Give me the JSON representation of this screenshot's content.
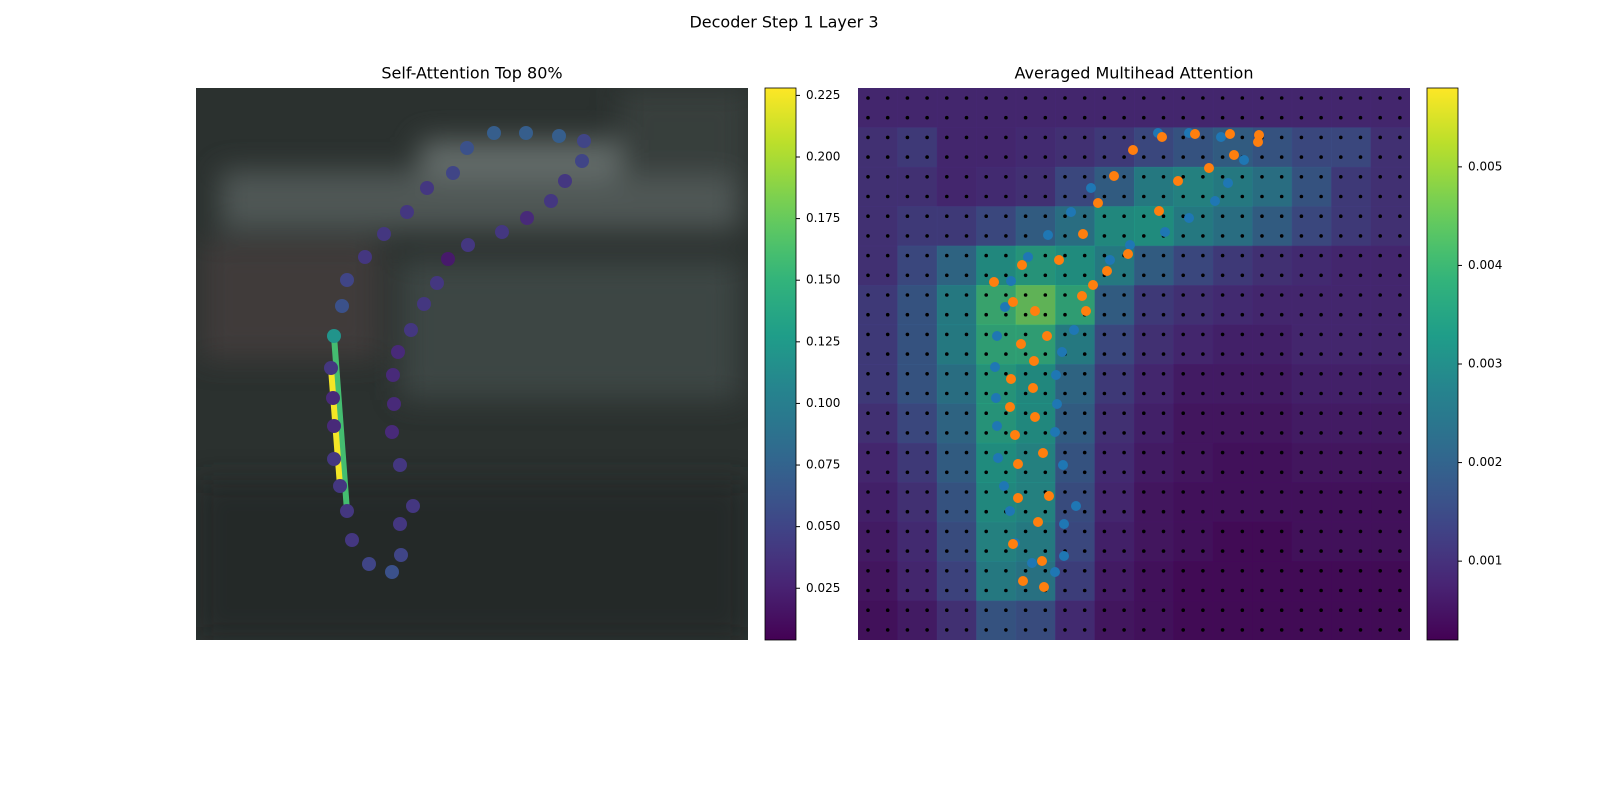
{
  "title": "Decoder Step 1 Layer 3",
  "chart_data": [
    {
      "type": "scatter",
      "title": "Self-Attention Top 80%",
      "xlim": [
        0,
        552
      ],
      "ylim": [
        552,
        0
      ],
      "x": [
        138,
        135,
        137,
        138,
        138,
        144,
        151,
        156,
        173,
        196,
        205,
        204,
        217,
        204,
        196,
        198,
        197,
        202,
        215,
        228,
        241,
        252,
        272,
        306,
        331,
        355,
        369,
        386,
        388,
        363,
        330,
        298,
        271,
        257,
        231,
        211,
        188,
        169,
        151,
        146
      ],
      "y": [
        248,
        280,
        310,
        338,
        371,
        398,
        423,
        452,
        476,
        484,
        467,
        436,
        418,
        377,
        344,
        316,
        287,
        264,
        242,
        216,
        195,
        171,
        157,
        144,
        130,
        113,
        93,
        73,
        53,
        48,
        45,
        45,
        60,
        85,
        100,
        124,
        146,
        169,
        192,
        218
      ],
      "values": [
        0.12,
        0.04,
        0.03,
        0.03,
        0.04,
        0.04,
        0.04,
        0.04,
        0.05,
        0.06,
        0.05,
        0.04,
        0.04,
        0.04,
        0.03,
        0.03,
        0.03,
        0.03,
        0.04,
        0.04,
        0.04,
        0.02,
        0.04,
        0.04,
        0.03,
        0.04,
        0.04,
        0.05,
        0.05,
        0.07,
        0.07,
        0.07,
        0.06,
        0.05,
        0.04,
        0.04,
        0.04,
        0.04,
        0.05,
        0.06
      ],
      "edges": [
        {
          "from": 0,
          "to": 6,
          "value": 0.16
        },
        {
          "from": 1,
          "to": 5,
          "value": 0.225
        }
      ],
      "clim": [
        0.004,
        0.228
      ],
      "cticks": [
        0.025,
        {
          "value": 0.05,
          "label": "0.050"
        },
        0.075,
        {
          "value": 0.1,
          "label": "0.100"
        },
        0.125,
        {
          "value": 0.15,
          "label": "0.150"
        },
        0.175,
        {
          "value": 0.2,
          "label": "0.200"
        },
        0.225
      ]
    },
    {
      "type": "heatmap",
      "title": "Averaged Multihead Attention",
      "xlim": [
        0,
        552
      ],
      "ylim": [
        552,
        0
      ],
      "z": [
        [
          0.0008,
          0.0008,
          0.0008,
          0.0008,
          0.0008,
          0.0008,
          0.0008,
          0.0008,
          0.0008,
          0.0008,
          0.0008,
          0.0008,
          0.0008,
          0.0008
        ],
        [
          0.001,
          0.0012,
          0.0008,
          0.0008,
          0.0009,
          0.001,
          0.0012,
          0.0015,
          0.0018,
          0.002,
          0.0018,
          0.0015,
          0.0015,
          0.001
        ],
        [
          0.001,
          0.001,
          0.0008,
          0.0009,
          0.001,
          0.0015,
          0.002,
          0.0028,
          0.003,
          0.0028,
          0.0025,
          0.0018,
          0.0012,
          0.001
        ],
        [
          0.001,
          0.0012,
          0.0012,
          0.0015,
          0.002,
          0.0025,
          0.0032,
          0.0033,
          0.0028,
          0.0025,
          0.002,
          0.0015,
          0.0012,
          0.001
        ],
        [
          0.001,
          0.0015,
          0.0022,
          0.0032,
          0.0035,
          0.0033,
          0.0028,
          0.002,
          0.0015,
          0.0012,
          0.001,
          0.0009,
          0.0008,
          0.0008
        ],
        [
          0.0012,
          0.0018,
          0.0028,
          0.004,
          0.0045,
          0.0038,
          0.002,
          0.0012,
          0.001,
          0.0009,
          0.0008,
          0.0008,
          0.0008,
          0.0008
        ],
        [
          0.0012,
          0.0018,
          0.0028,
          0.0038,
          0.0038,
          0.0028,
          0.0015,
          0.001,
          0.0008,
          0.0007,
          0.0007,
          0.0008,
          0.0008,
          0.0008
        ],
        [
          0.0012,
          0.0018,
          0.0025,
          0.0035,
          0.0032,
          0.0022,
          0.0012,
          0.0008,
          0.0006,
          0.0006,
          0.0006,
          0.0007,
          0.0007,
          0.0007
        ],
        [
          0.001,
          0.0015,
          0.0022,
          0.0035,
          0.0032,
          0.002,
          0.001,
          0.0007,
          0.0005,
          0.0005,
          0.0005,
          0.0006,
          0.0006,
          0.0006
        ],
        [
          0.0008,
          0.0012,
          0.002,
          0.0033,
          0.003,
          0.0018,
          0.0009,
          0.0006,
          0.0005,
          0.0004,
          0.0004,
          0.0005,
          0.0005,
          0.0005
        ],
        [
          0.0007,
          0.001,
          0.0018,
          0.0032,
          0.003,
          0.0016,
          0.0008,
          0.0005,
          0.0004,
          0.0004,
          0.0004,
          0.0004,
          0.0004,
          0.0004
        ],
        [
          0.0006,
          0.0009,
          0.0016,
          0.003,
          0.0028,
          0.0015,
          0.0007,
          0.0005,
          0.0004,
          0.0003,
          0.0003,
          0.0004,
          0.0004,
          0.0004
        ],
        [
          0.0005,
          0.0008,
          0.0014,
          0.0028,
          0.0026,
          0.0013,
          0.0006,
          0.0004,
          0.0003,
          0.0003,
          0.0003,
          0.0003,
          0.0003,
          0.0003
        ],
        [
          0.0004,
          0.0006,
          0.001,
          0.0018,
          0.0016,
          0.0009,
          0.0005,
          0.0004,
          0.0003,
          0.0003,
          0.0003,
          0.0003,
          0.0003,
          0.0003
        ]
      ],
      "series": [
        {
          "color": "#1f77b4",
          "x": [
            300,
            331,
            363,
            386,
            370,
            357,
            331,
            307,
            272,
            252,
            233,
            213,
            190,
            170,
            153,
            147,
            139,
            137,
            138,
            139,
            140,
            146,
            152,
            157,
            174,
            197,
            206,
            206,
            218,
            205,
            197,
            199,
            198,
            204,
            216
          ],
          "y": [
            45,
            45,
            49,
            72,
            95,
            113,
            130,
            144,
            157,
            172,
            100,
            124,
            147,
            169,
            193,
            219,
            248,
            279,
            310,
            338,
            370,
            398,
            423,
            455,
            475,
            484,
            468,
            436,
            418,
            377,
            344,
            316,
            287,
            264,
            242
          ]
        },
        {
          "color": "#ff7f0e",
          "x": [
            304,
            337,
            372,
            401,
            400,
            376,
            351,
            320,
            301,
            270,
            249,
            235,
            224,
            228,
            201,
            225,
            240,
            256,
            275,
            164,
            136,
            155,
            177,
            189,
            163,
            176,
            153,
            175,
            152,
            177,
            157,
            185,
            160,
            191,
            160,
            180,
            155,
            184,
            165,
            186
          ],
          "y": [
            49,
            46,
            46,
            47,
            54,
            67,
            80,
            93,
            123,
            166,
            183,
            197,
            208,
            223,
            172,
            146,
            115,
            88,
            62,
            177,
            194,
            214,
            223,
            248,
            256,
            273,
            291,
            300,
            319,
            329,
            347,
            365,
            376,
            408,
            410,
            434,
            456,
            473,
            493,
            499
          ]
        }
      ],
      "clim": [
        0.0002,
        0.0058
      ],
      "cticks": [
        0.001,
        0.002,
        0.003,
        0.004,
        0.005
      ]
    }
  ]
}
